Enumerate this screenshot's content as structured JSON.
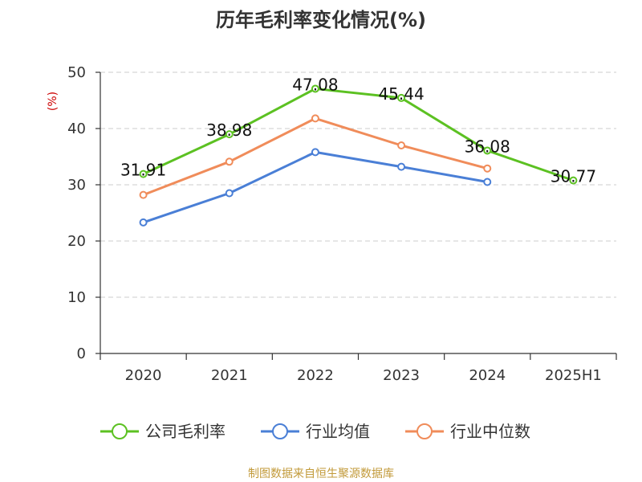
{
  "chart_data": {
    "type": "line",
    "title": "历年毛利率变化情况(%)",
    "ylabel": "(%)",
    "xlabel": "",
    "categories": [
      "2020",
      "2021",
      "2022",
      "2023",
      "2024",
      "2025H1"
    ],
    "ylim": [
      0,
      50
    ],
    "yticks": [
      0,
      10,
      20,
      30,
      40,
      50
    ],
    "grid": true,
    "legend_position": "bottom",
    "series": [
      {
        "name": "公司毛利率",
        "color": "#5cc122",
        "values": [
          31.91,
          38.98,
          47.08,
          45.44,
          36.08,
          30.77
        ],
        "labels": [
          "31.91",
          "38.98",
          "47.08",
          "45.44",
          "36.08",
          "30.77"
        ]
      },
      {
        "name": "行业均值",
        "color": "#4a7fd6",
        "values": [
          23.3,
          28.5,
          35.8,
          33.2,
          30.5,
          null
        ]
      },
      {
        "name": "行业中位数",
        "color": "#f08c5a",
        "values": [
          28.2,
          34.1,
          41.8,
          37.0,
          32.9,
          null
        ]
      }
    ]
  },
  "footer": {
    "source": "制图数据来自恒生聚源数据库"
  }
}
